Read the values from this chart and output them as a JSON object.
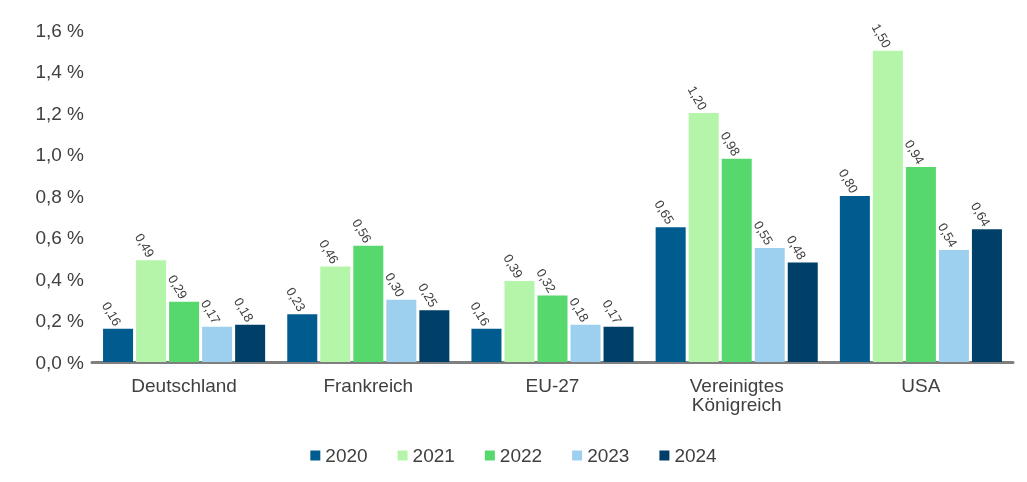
{
  "chart_data": {
    "type": "bar",
    "categories": [
      "Deutschland",
      "Frankreich",
      "EU-27",
      "Vereinigtes Königreich",
      "USA"
    ],
    "series": [
      {
        "name": "2020",
        "color": "#005b8f",
        "values": [
          0.16,
          0.23,
          0.16,
          0.65,
          0.8
        ],
        "value_labels": [
          "0,16",
          "0,23",
          "0,16",
          "0,65",
          "0,80"
        ]
      },
      {
        "name": "2021",
        "color": "#b5f5aa",
        "values": [
          0.49,
          0.46,
          0.39,
          1.2,
          1.5
        ],
        "value_labels": [
          "0,49",
          "0,46",
          "0,39",
          "1,20",
          "1,50"
        ]
      },
      {
        "name": "2022",
        "color": "#56d86c",
        "values": [
          0.29,
          0.56,
          0.32,
          0.98,
          0.94
        ],
        "value_labels": [
          "0,29",
          "0,56",
          "0,32",
          "0,98",
          "0,94"
        ]
      },
      {
        "name": "2023",
        "color": "#9dd0ee",
        "values": [
          0.17,
          0.3,
          0.18,
          0.55,
          0.54
        ],
        "value_labels": [
          "0,17",
          "0,30",
          "0,18",
          "0,55",
          "0,54"
        ]
      },
      {
        "name": "2024",
        "color": "#003f68",
        "values": [
          0.18,
          0.25,
          0.17,
          0.48,
          0.64
        ],
        "value_labels": [
          "0,18",
          "0,25",
          "0,17",
          "0,48",
          "0,64"
        ]
      }
    ],
    "ylim": [
      0,
      1.6
    ],
    "yticks": [
      {
        "value": 0,
        "label": "0,0 %"
      },
      {
        "value": 0.2,
        "label": "0,2 %"
      },
      {
        "value": 0.4,
        "label": "0,4 %"
      },
      {
        "value": 0.6,
        "label": "0,6 %"
      },
      {
        "value": 0.8,
        "label": "0,8 %"
      },
      {
        "value": 1.0,
        "label": "1,0 %"
      },
      {
        "value": 1.2,
        "label": "1,2 %"
      },
      {
        "value": 1.4,
        "label": "1,4 %"
      },
      {
        "value": 1.6,
        "label": "1,6 %"
      }
    ],
    "grid": false,
    "legend": "bottom"
  }
}
